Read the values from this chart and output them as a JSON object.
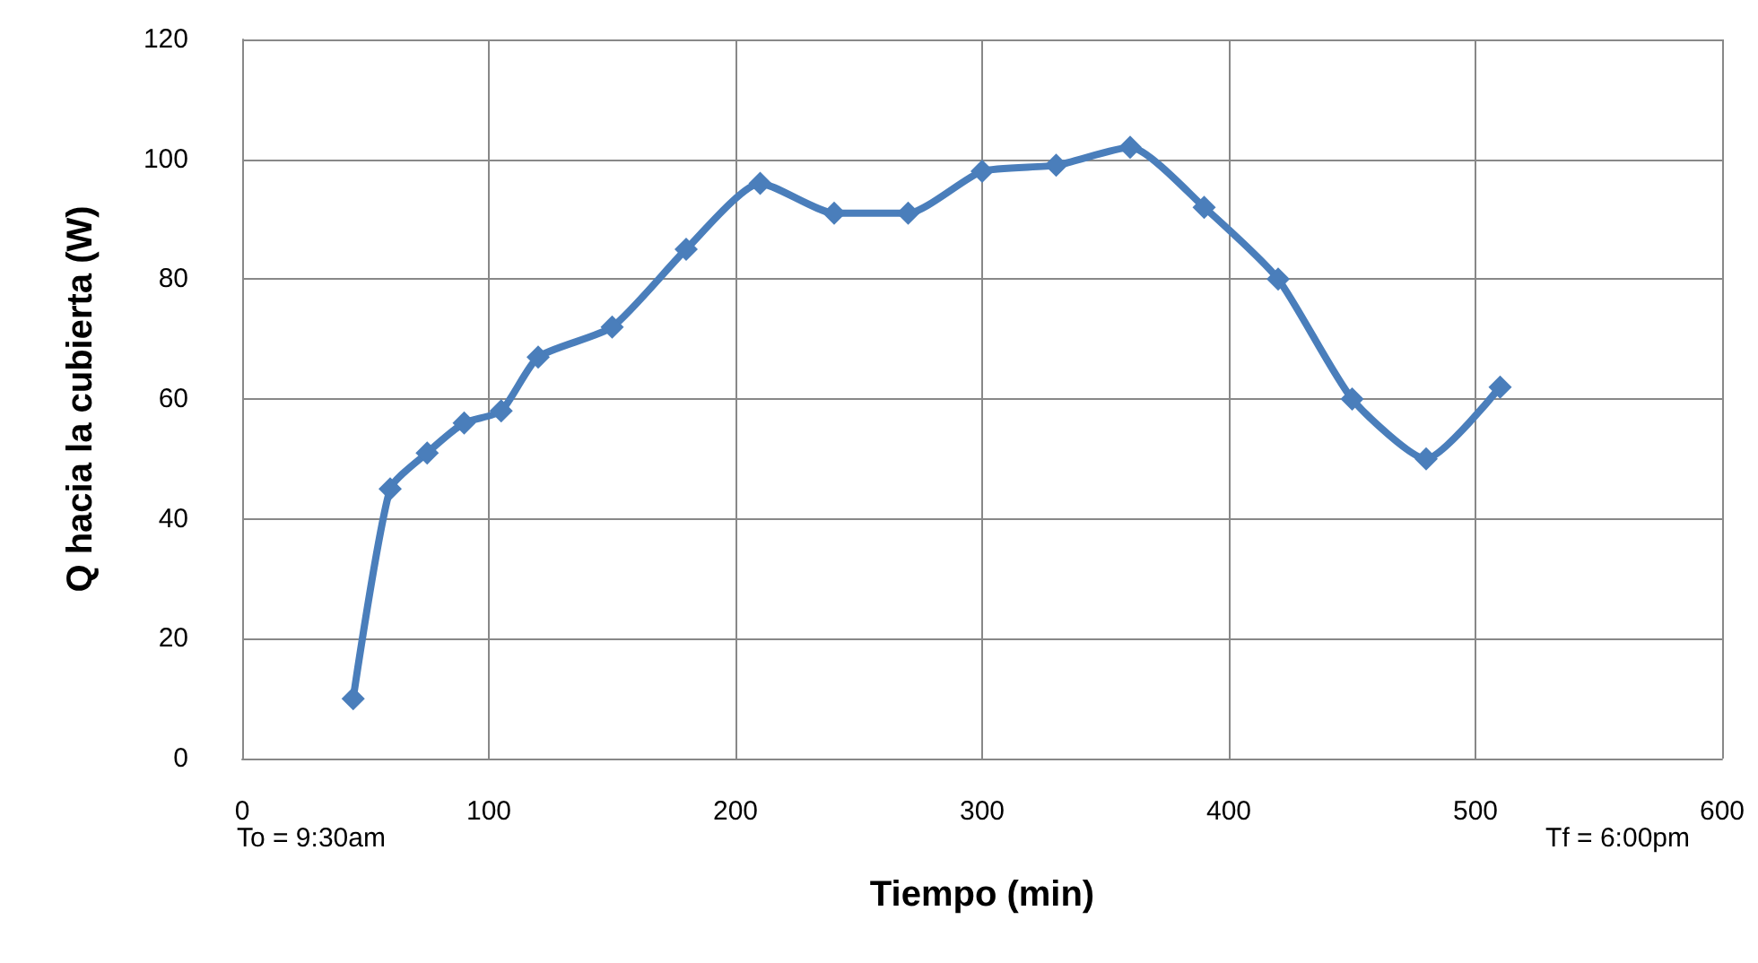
{
  "chart_data": {
    "type": "line",
    "xlabel": "Tiempo (min)",
    "ylabel": "Q hacia la cubierta (W)",
    "annotations": [
      "To = 9:30am",
      "Tf = 6:00pm"
    ],
    "x": [
      45,
      60,
      75,
      90,
      105,
      120,
      150,
      180,
      210,
      240,
      270,
      300,
      330,
      360,
      390,
      420,
      450,
      480,
      510
    ],
    "series": [
      {
        "color": "#4a7ebb",
        "values": [
          10,
          45,
          51,
          56,
          58,
          67,
          72,
          85,
          96,
          91,
          91,
          98,
          99,
          102,
          92,
          80,
          60,
          50,
          62
        ]
      }
    ],
    "xlim": [
      0,
      600
    ],
    "xticks": [
      0,
      100,
      200,
      300,
      400,
      500,
      600
    ],
    "ylim": [
      0,
      120
    ],
    "yticks": [
      0,
      20,
      40,
      60,
      80,
      100,
      120
    ],
    "grid": true,
    "marker": "diamond",
    "line_style": "solid"
  }
}
